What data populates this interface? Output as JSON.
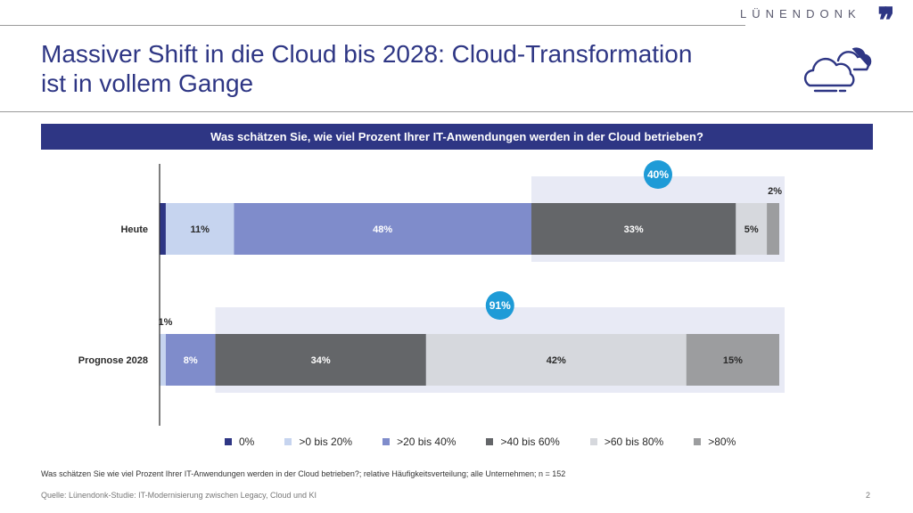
{
  "brand": {
    "name": "LÜNENDONK",
    "mark": "❜❜"
  },
  "title": {
    "line1": "Massiver Shift in die Cloud bis 2028: Cloud-Transformation",
    "line2": "ist in vollem Gange"
  },
  "question": "Was schätzen Sie, wie viel Prozent Ihrer IT-Anwendungen werden in der Cloud betrieben?",
  "chart_data": {
    "type": "bar",
    "orientation": "horizontal",
    "stacked": true,
    "title": "Was schätzen Sie, wie viel Prozent Ihrer IT-Anwendungen werden in der Cloud betrieben?",
    "categories": [
      "Heute",
      "Prognose 2028"
    ],
    "xlim": [
      0,
      100
    ],
    "series": [
      {
        "name": "0%",
        "color": "#2e3684",
        "values": [
          1,
          0
        ],
        "labels": [
          "",
          ""
        ]
      },
      {
        "name": ">0 bis 20%",
        "color": "#c6d4ef",
        "values": [
          11,
          1
        ],
        "labels": [
          "11%",
          "1%"
        ]
      },
      {
        "name": ">20 bis 40%",
        "color": "#7f8ccb",
        "values": [
          48,
          8
        ],
        "labels": [
          "48%",
          "8%"
        ]
      },
      {
        "name": ">40 bis 60%",
        "color": "#646669",
        "values": [
          33,
          34
        ],
        "labels": [
          "33%",
          "34%"
        ]
      },
      {
        "name": ">60 bis 80%",
        "color": "#d6d8dd",
        "values": [
          5,
          42
        ],
        "labels": [
          "5%",
          "42%"
        ]
      },
      {
        "name": ">80%",
        "color": "#9c9d9f",
        "values": [
          2,
          15
        ],
        "labels": [
          "2%",
          "15%"
        ]
      }
    ],
    "highlights": [
      {
        "category": "Heute",
        "label": "40%",
        "from_series": ">40 bis 60%"
      },
      {
        "category": "Prognose 2028",
        "label": "91%",
        "from_series": ">40 bis 60%"
      }
    ],
    "legend": "bottom"
  },
  "footnote": "Was schätzen Sie wie viel Prozent Ihrer IT-Anwendungen werden in der Cloud betrieben?; relative Häufigkeitsverteilung; alle Unternehmen; n = 152",
  "source": "Quelle: Lünendonk-Studie: IT-Modernisierung zwischen Legacy, Cloud und KI",
  "page": "2"
}
